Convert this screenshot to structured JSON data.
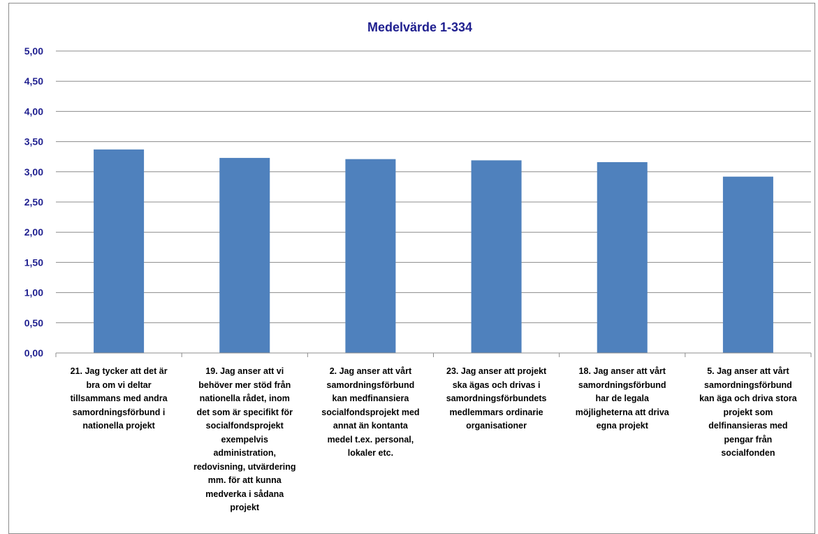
{
  "chart_data": {
    "type": "bar",
    "title": "Medelvärde 1-334",
    "xlabel": "",
    "ylabel": "",
    "ylim": [
      0,
      5
    ],
    "ytick_step": 0.5,
    "ytick_labels": [
      "0,00",
      "0,50",
      "1,00",
      "1,50",
      "2,00",
      "2,50",
      "3,00",
      "3,50",
      "4,00",
      "4,50",
      "5,00"
    ],
    "grid": true,
    "legend": "none",
    "bar_color": "#4f81bd",
    "categories": [
      "21. Jag tycker att det är bra om vi deltar tillsammans med andra samordningsförbund i nationella projekt",
      "19. Jag anser att vi behöver mer stöd från nationella rådet, inom det som är specifikt för socialfondsprojekt exempelvis administration, redovisning, utvärdering mm. för att kunna medverka i sådana projekt",
      "2. Jag anser att vårt samordningsförbund kan medfinansiera socialfondsprojekt med annat än kontanta medel t.ex. personal, lokaler etc.",
      "23. Jag anser att projekt ska ägas och drivas i samordningsförbundets medlemmars ordinarie organisationer",
      "18. Jag anser att vårt samordningsförbund har de legala möjligheterna att driva egna projekt",
      "5. Jag anser att vårt samordningsförbund kan äga och driva stora projekt som delfinansieras med pengar från socialfonden"
    ],
    "category_lines": [
      [
        "21. Jag tycker att det är",
        "bra om vi deltar",
        "tillsammans med andra",
        "samordningsförbund i",
        "nationella projekt"
      ],
      [
        "19. Jag anser att vi",
        "behöver mer stöd från",
        "nationella rådet, inom",
        "det som är specifikt för",
        "socialfondsprojekt",
        "exempelvis",
        "administration,",
        "redovisning, utvärdering",
        "mm. för att kunna",
        "medverka i sådana",
        "projekt"
      ],
      [
        "2. Jag anser att vårt",
        "samordningsförbund",
        "kan medfinansiera",
        "socialfondsprojekt med",
        "annat än kontanta",
        "medel t.ex. personal,",
        "lokaler etc."
      ],
      [
        "23. Jag anser att projekt",
        "ska ägas och drivas i",
        "samordningsförbundets",
        "medlemmars ordinarie",
        "organisationer"
      ],
      [
        "18. Jag anser att vårt",
        "samordningsförbund",
        "har de legala",
        "möjligheterna att driva",
        "egna projekt"
      ],
      [
        "5. Jag anser att vårt",
        "samordningsförbund",
        "kan äga och driva stora",
        "projekt som",
        "delfinansieras med",
        "pengar från",
        "socialfonden"
      ]
    ],
    "values": [
      3.37,
      3.23,
      3.21,
      3.19,
      3.16,
      2.92
    ]
  }
}
